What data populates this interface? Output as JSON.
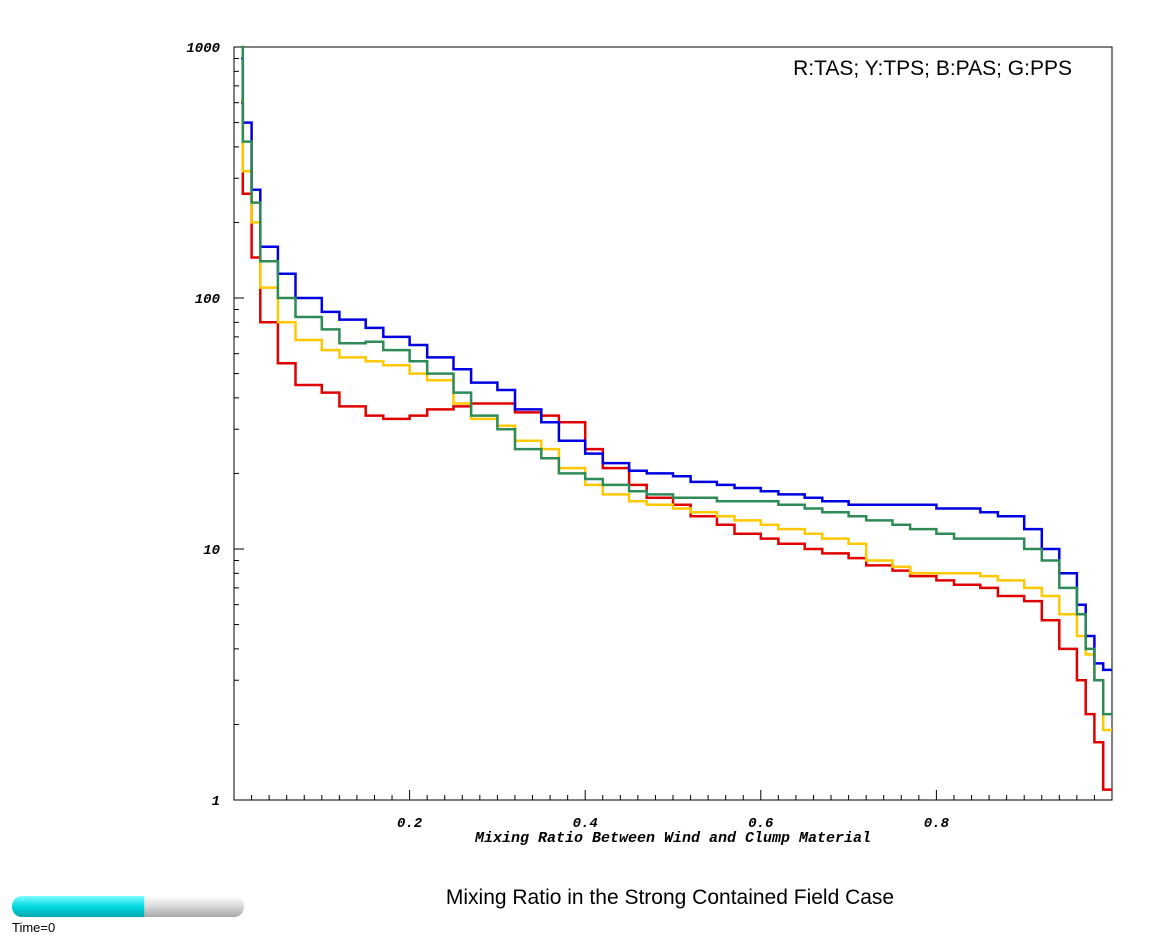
{
  "title": "Mixing Ratio in the Strong Contained Field Case",
  "time_label": "Time=0",
  "time_progress": 0.57,
  "chart_data": {
    "type": "line",
    "title": "Mixing Ratio in the Strong Contained Field Case",
    "xlabel": "Mixing Ratio Between Wind and Clump Material",
    "ylabel": "",
    "x_scale": "linear",
    "y_scale": "log",
    "xlim": [
      0,
      1
    ],
    "ylim": [
      1,
      1000
    ],
    "x_ticks": [
      0.2,
      0.4,
      0.6,
      0.8
    ],
    "x_tick_labels": [
      "0.2",
      "0.4",
      "0.6",
      "0.8"
    ],
    "y_ticks": [
      1,
      10,
      100,
      1000
    ],
    "y_tick_labels": [
      "1",
      "10",
      "100",
      "1000"
    ],
    "legend": "R:TAS; Y:TPS; B:PAS; G:PPS",
    "legend_position": "top-right",
    "grid": false,
    "x": [
      0.01,
      0.02,
      0.03,
      0.05,
      0.07,
      0.1,
      0.12,
      0.15,
      0.17,
      0.2,
      0.22,
      0.25,
      0.27,
      0.3,
      0.32,
      0.35,
      0.37,
      0.4,
      0.42,
      0.45,
      0.47,
      0.5,
      0.52,
      0.55,
      0.57,
      0.6,
      0.62,
      0.65,
      0.67,
      0.7,
      0.72,
      0.75,
      0.77,
      0.8,
      0.82,
      0.85,
      0.87,
      0.9,
      0.92,
      0.94,
      0.96,
      0.97,
      0.98,
      0.99,
      1.0
    ],
    "series": [
      {
        "color": "#e00000",
        "values": [
          600,
          260,
          145,
          80,
          55,
          45,
          42,
          37,
          34,
          33,
          34,
          36,
          37,
          38,
          38,
          35,
          34,
          32,
          25,
          21,
          18,
          16,
          15,
          13.5,
          12.5,
          11.5,
          11,
          10.5,
          10,
          9.6,
          9.2,
          8.6,
          8.2,
          7.8,
          7.5,
          7.2,
          7,
          6.5,
          6.2,
          5.2,
          4,
          3,
          2.2,
          1.7,
          1.1
        ]
      },
      {
        "color": "#ffc800",
        "values": [
          620,
          320,
          200,
          110,
          80,
          68,
          62,
          58,
          56,
          54,
          50,
          47,
          38,
          33,
          31,
          27,
          25,
          21,
          18,
          16.5,
          15.5,
          15,
          14.5,
          14,
          13.5,
          13,
          12.5,
          12,
          11.5,
          11,
          10.5,
          9,
          8.5,
          8,
          8,
          8,
          7.8,
          7.5,
          7,
          6.5,
          5.5,
          4.5,
          3.8,
          3,
          1.9
        ]
      },
      {
        "color": "#0000e0",
        "values": [
          900,
          500,
          270,
          160,
          125,
          100,
          88,
          82,
          76,
          70,
          65,
          58,
          52,
          46,
          43,
          36,
          32,
          27,
          24,
          22,
          20.5,
          20,
          19.5,
          18.5,
          18,
          17.5,
          17,
          16.5,
          16,
          15.5,
          15,
          15,
          15,
          15,
          14.5,
          14.5,
          14,
          13.5,
          12,
          10,
          8,
          6,
          4.5,
          3.5,
          3.3
        ]
      },
      {
        "color": "#2e8b57",
        "values": [
          1000,
          420,
          240,
          140,
          100,
          84,
          75,
          66,
          67,
          62,
          56,
          50,
          42,
          34,
          30,
          25,
          23,
          20,
          19,
          18,
          17,
          16.5,
          16,
          16,
          15.5,
          15.5,
          15.5,
          15,
          14.5,
          14,
          13.5,
          13,
          12.5,
          12,
          11.5,
          11,
          11,
          11,
          10,
          9,
          7,
          5.5,
          4,
          3,
          2.2
        ]
      }
    ]
  }
}
